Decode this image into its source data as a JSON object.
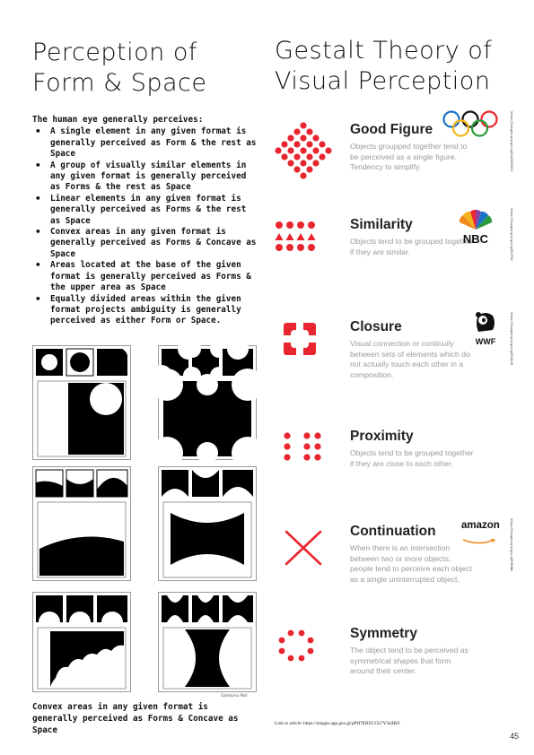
{
  "left": {
    "title": "Perception of Form & Space",
    "intro_heading": "The human eye generally perceives:",
    "bullets": [
      "A single element in any given format is generally perceived as Form & the rest as Space",
      "A group of visually similar elements in any given format is generally perceived as Forms & the rest as Space",
      "Linear elements in any given format is generally perceived as Forms & the rest as Space",
      "Convex areas in any given format is generally perceived as Forms & Concave as Space",
      "Areas located at the base of the given format is generally perceived as Forms & the upper area as Space",
      "Equally divided areas within the given format projects ambiguity is generally perceived as either Form or Space."
    ],
    "diagram_caption": "Convex areas in any given format is generally perceived as Forms & Concave as Space",
    "credit": "Gambulsu Moli"
  },
  "right": {
    "title": "Gestalt Theory of Visual Perception",
    "principles": [
      {
        "name": "Good Figure",
        "description": "Objects groupped together tend to be perceived as a single figure. Tendency to simplify.",
        "icon": "diamond-dots-icon",
        "logo": "olympic-rings-logo",
        "link": "https://images.app.goo.gl/bUGD1N19"
      },
      {
        "name": "Similarity",
        "description": "Objects tend to be grouped together if they are similar.",
        "icon": "circles-triangles-icon",
        "logo": "nbc-peacock-logo",
        "logo_text": "NBC",
        "link": "https://images.app.goo.gl/6n7X2"
      },
      {
        "name": "Closure",
        "description": "Visual connection or continuity between sets of elements which do not actually touch each other in a composition.",
        "icon": "closure-square-icon",
        "logo": "wwf-panda-logo",
        "logo_text": "WWF",
        "link": "https://images.app.goo.gl/KaQn6"
      },
      {
        "name": "Proximity",
        "description": "Objects tend to be grouped together if they are close to each other.",
        "icon": "dot-columns-icon",
        "logo": "",
        "link": ""
      },
      {
        "name": "Continuation",
        "description": "When there is an intersection between two or more objects, people tend to perceive each object as a single uninterrupted object.",
        "icon": "crossing-lines-icon",
        "logo": "amazon-logo",
        "logo_text": "amazon",
        "link": "https://images.app.goo.gl/H9dNz"
      },
      {
        "name": "Symmetry",
        "description": "The object tend to be perceived as symmetrical shapes that form around their center.",
        "icon": "dot-ring-icon",
        "logo": "",
        "link": ""
      }
    ],
    "article_link": "Link to article: https://images.app.goo.gl/pPH7EBUCGh7Y5tzHk9"
  },
  "page_number": "45",
  "colors": {
    "accent": "#e8262f",
    "text": "#111111",
    "muted": "#9a9a9a"
  }
}
